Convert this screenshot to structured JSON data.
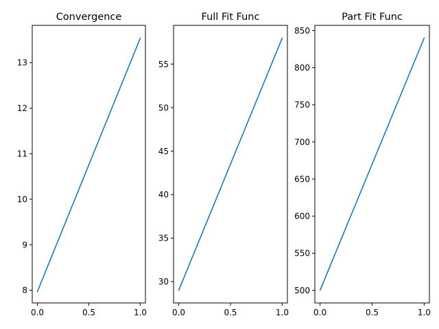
{
  "chart_data": [
    {
      "type": "line",
      "title": "Convergence",
      "xlabel": "",
      "ylabel": "",
      "xlim": [
        -0.05,
        1.05
      ],
      "ylim": [
        7.72,
        13.82
      ],
      "xticks": [
        0.0,
        0.5,
        1.0
      ],
      "xtick_labels": [
        "0.0",
        "0.5",
        "1.0"
      ],
      "yticks": [
        8,
        9,
        10,
        11,
        12,
        13
      ],
      "ytick_labels": [
        "8",
        "9",
        "10",
        "11",
        "12",
        "13"
      ],
      "grid": false,
      "series": [
        {
          "color": "#1f77b4",
          "x": [
            0,
            1
          ],
          "y": [
            7.97,
            13.54
          ]
        }
      ]
    },
    {
      "type": "line",
      "title": "Full Fit Func",
      "xlabel": "",
      "ylabel": "",
      "xlim": [
        -0.05,
        1.05
      ],
      "ylim": [
        27.55,
        59.45
      ],
      "xticks": [
        0.0,
        0.5,
        1.0
      ],
      "xtick_labels": [
        "0.0",
        "0.5",
        "1.0"
      ],
      "yticks": [
        30,
        35,
        40,
        45,
        50,
        55
      ],
      "ytick_labels": [
        "30",
        "35",
        "40",
        "45",
        "50",
        "55"
      ],
      "grid": false,
      "series": [
        {
          "color": "#1f77b4",
          "x": [
            0,
            1
          ],
          "y": [
            29.0,
            58.0
          ]
        }
      ]
    },
    {
      "type": "line",
      "title": "Part Fit Func",
      "xlabel": "",
      "ylabel": "",
      "xlim": [
        -0.05,
        1.05
      ],
      "ylim": [
        483.0,
        857.0
      ],
      "xticks": [
        0.0,
        0.5,
        1.0
      ],
      "xtick_labels": [
        "0.0",
        "0.5",
        "1.0"
      ],
      "yticks": [
        500,
        550,
        600,
        650,
        700,
        750,
        800,
        850
      ],
      "ytick_labels": [
        "500",
        "550",
        "600",
        "650",
        "700",
        "750",
        "800",
        "850"
      ],
      "grid": false,
      "series": [
        {
          "color": "#1f77b4",
          "x": [
            0,
            1
          ],
          "y": [
            500,
            840
          ]
        }
      ]
    }
  ]
}
